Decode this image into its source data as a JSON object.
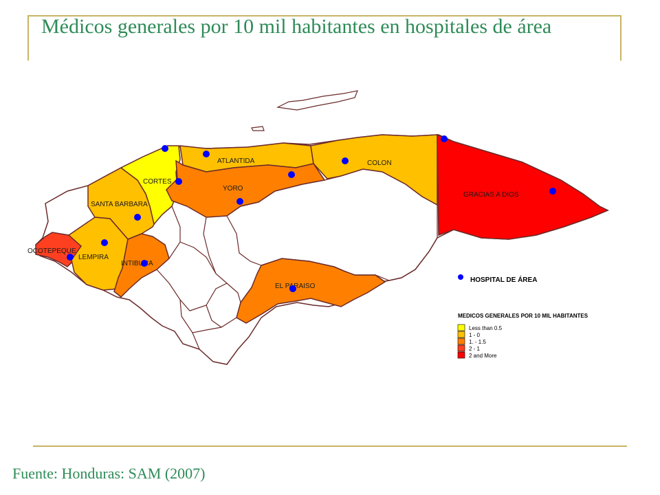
{
  "title": "Médicos generales por 10 mil habitantes en hospitales de área",
  "source": "Fuente: Honduras: SAM (2007)",
  "colors": {
    "frame": "#c8b464",
    "title": "#2e8b57",
    "cat_lt05": "#ffff00",
    "cat_1_0": "#ffc000",
    "cat_1_15": "#ff8000",
    "cat_2_1": "#ff4020",
    "cat_2plus": "#ff0000",
    "hospital": "#0000ff",
    "border": "#6b2a2a"
  },
  "departments": {
    "atlantida": "ATLANTIDA",
    "colon": "COLON",
    "cortes": "CORTES",
    "yoro": "YORO",
    "santa_barbara": "SANTA BARBARA",
    "gracias_a_dios": "GRACIAS A DIOS",
    "ocotepeque": "OCOTEPEQUE",
    "lempira": "LEMPIRA",
    "intibuca": "INTIBUCA",
    "el_paraiso": "EL PARAISO"
  },
  "legend": {
    "hospital_label": "HOSPITAL DE ÁREA",
    "title": "MEDICOS GENERALES POR 10 MIL HABITANTES",
    "items": [
      "Less than 0.5",
      "1 - 0",
      "1. - 1.5",
      "2 - 1",
      "2 and More"
    ]
  }
}
